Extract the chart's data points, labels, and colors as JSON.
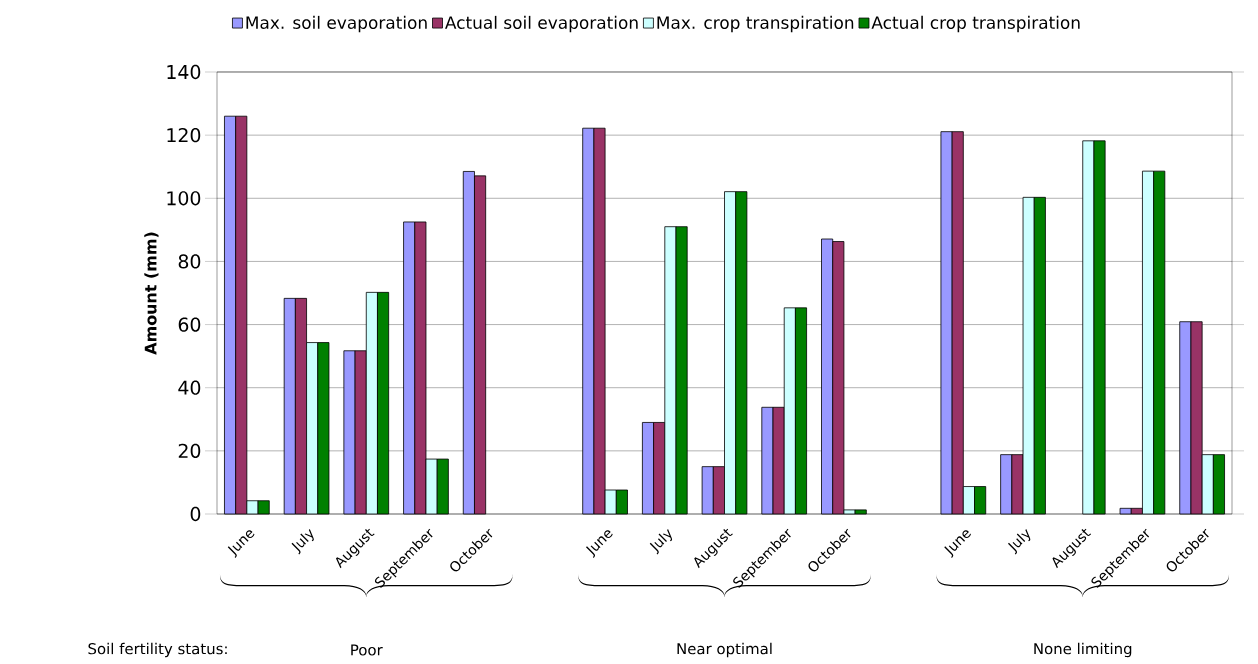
{
  "chart_data": {
    "type": "bar",
    "ylabel": "Amount (mm)",
    "categories": [
      "June",
      "July",
      "August",
      "September",
      "October",
      null,
      "June",
      "July",
      "August",
      "September",
      "October",
      null,
      "June",
      "July",
      "August",
      "September",
      "October"
    ],
    "series": [
      {
        "name": "Max. soil evaporation",
        "color": "#9999ff",
        "values": [
          126,
          68.3,
          51.7,
          92.5,
          108.5,
          null,
          122.2,
          29,
          15,
          33.8,
          87.1,
          null,
          121.1,
          18.8,
          null,
          1.8,
          60.9
        ]
      },
      {
        "name": "Actual soil evaporation",
        "color": "#993366",
        "values": [
          126,
          68.3,
          51.7,
          92.5,
          107.1,
          null,
          122.2,
          29,
          15,
          33.8,
          86.3,
          null,
          121.1,
          18.8,
          null,
          1.8,
          60.9
        ]
      },
      {
        "name": "Max. crop transpiration",
        "color": "#ccffff",
        "values": [
          4.2,
          54.3,
          70.2,
          17.4,
          null,
          null,
          7.6,
          91,
          102.1,
          65.3,
          1.3,
          null,
          8.7,
          100.3,
          118.2,
          108.6,
          18.8
        ]
      },
      {
        "name": "Actual crop transpiration",
        "color": "#008000",
        "values": [
          4.2,
          54.3,
          70.2,
          17.4,
          null,
          null,
          7.6,
          91,
          102.1,
          65.3,
          1.3,
          null,
          8.7,
          100.3,
          118.2,
          108.6,
          18.8
        ]
      }
    ],
    "ylim": [
      0,
      140
    ],
    "yticks": [
      0,
      20,
      40,
      60,
      80,
      100,
      120,
      140
    ],
    "grid": "y",
    "legend": "top",
    "annotations": [
      "Soil fertility status:",
      "Poor",
      "Near optimal",
      "None limiting"
    ]
  }
}
